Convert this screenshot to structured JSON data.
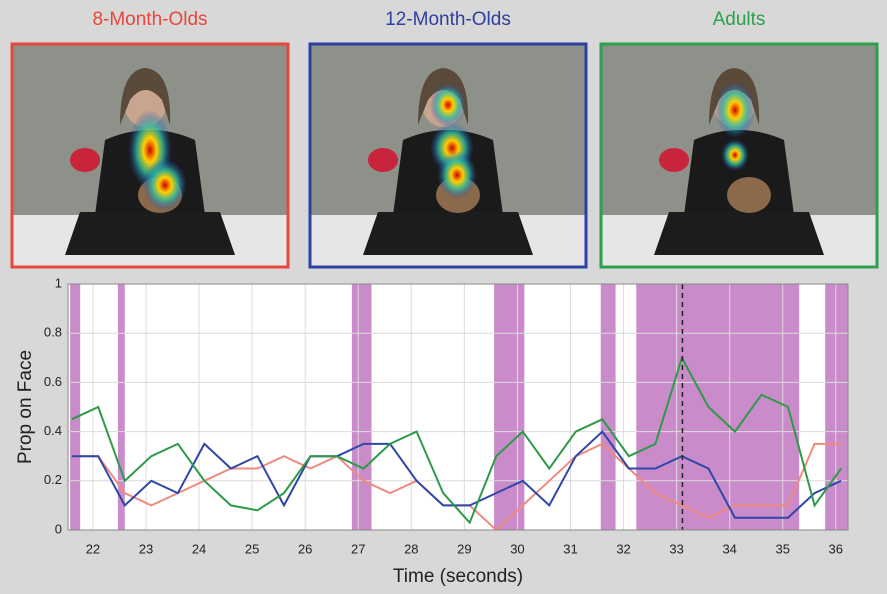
{
  "panels": [
    {
      "title": "8-Month-Olds",
      "color": "#e8473b"
    },
    {
      "title": "12-Month-Olds",
      "color": "#2d3fa0"
    },
    {
      "title": "Adults",
      "color": "#2aa14a"
    }
  ],
  "chart_data": {
    "type": "line",
    "x_label": "Time (seconds)",
    "y_label": "Prop on Face",
    "xlim": [
      21.53,
      36.23
    ],
    "ylim": [
      0,
      1
    ],
    "xticks": [
      22,
      23,
      24,
      25,
      26,
      27,
      28,
      29,
      30,
      31,
      32,
      33,
      34,
      35,
      36
    ],
    "yticks": [
      0,
      0.2,
      0.4,
      0.6,
      0.8,
      1
    ],
    "grid": true,
    "shaded_regions": [
      [
        21.57,
        21.76
      ],
      [
        22.47,
        22.6
      ],
      [
        26.88,
        27.25
      ],
      [
        29.56,
        30.13
      ],
      [
        31.57,
        31.85
      ],
      [
        32.24,
        35.31
      ],
      [
        35.8,
        36.23
      ]
    ],
    "shade_color": "#c98bc9",
    "marker_x": 33.11,
    "x": [
      21.6,
      22.1,
      22.6,
      23.1,
      23.6,
      24.1,
      24.6,
      25.1,
      25.6,
      26.1,
      26.6,
      27.1,
      27.6,
      28.1,
      28.6,
      29.1,
      29.6,
      30.1,
      30.6,
      31.1,
      31.6,
      32.1,
      32.6,
      33.1,
      33.6,
      34.1,
      34.6,
      35.1,
      35.6,
      36.1
    ],
    "series": [
      {
        "color": "#f08a80",
        "values": [
          0.3,
          0.3,
          0.15,
          0.1,
          0.15,
          0.2,
          0.25,
          0.25,
          0.3,
          0.25,
          0.3,
          0.2,
          0.15,
          0.2,
          0.1,
          0.1,
          0.0,
          0.1,
          0.2,
          0.3,
          0.35,
          0.25,
          0.15,
          0.1,
          0.05,
          0.1,
          0.1,
          0.1,
          0.35,
          0.35
        ]
      },
      {
        "color": "#2e47a8",
        "values": [
          0.3,
          0.3,
          0.1,
          0.2,
          0.15,
          0.35,
          0.25,
          0.3,
          0.1,
          0.3,
          0.3,
          0.35,
          0.35,
          0.2,
          0.1,
          0.1,
          0.15,
          0.2,
          0.1,
          0.3,
          0.4,
          0.25,
          0.25,
          0.3,
          0.25,
          0.05,
          0.05,
          0.05,
          0.15,
          0.2
        ]
      },
      {
        "color": "#2e9a48",
        "values": [
          0.45,
          0.5,
          0.2,
          0.3,
          0.35,
          0.2,
          0.1,
          0.08,
          0.15,
          0.3,
          0.3,
          0.25,
          0.35,
          0.4,
          0.15,
          0.03,
          0.3,
          0.4,
          0.25,
          0.4,
          0.45,
          0.3,
          0.35,
          0.7,
          0.5,
          0.4,
          0.55,
          0.5,
          0.1,
          0.25
        ]
      }
    ]
  }
}
